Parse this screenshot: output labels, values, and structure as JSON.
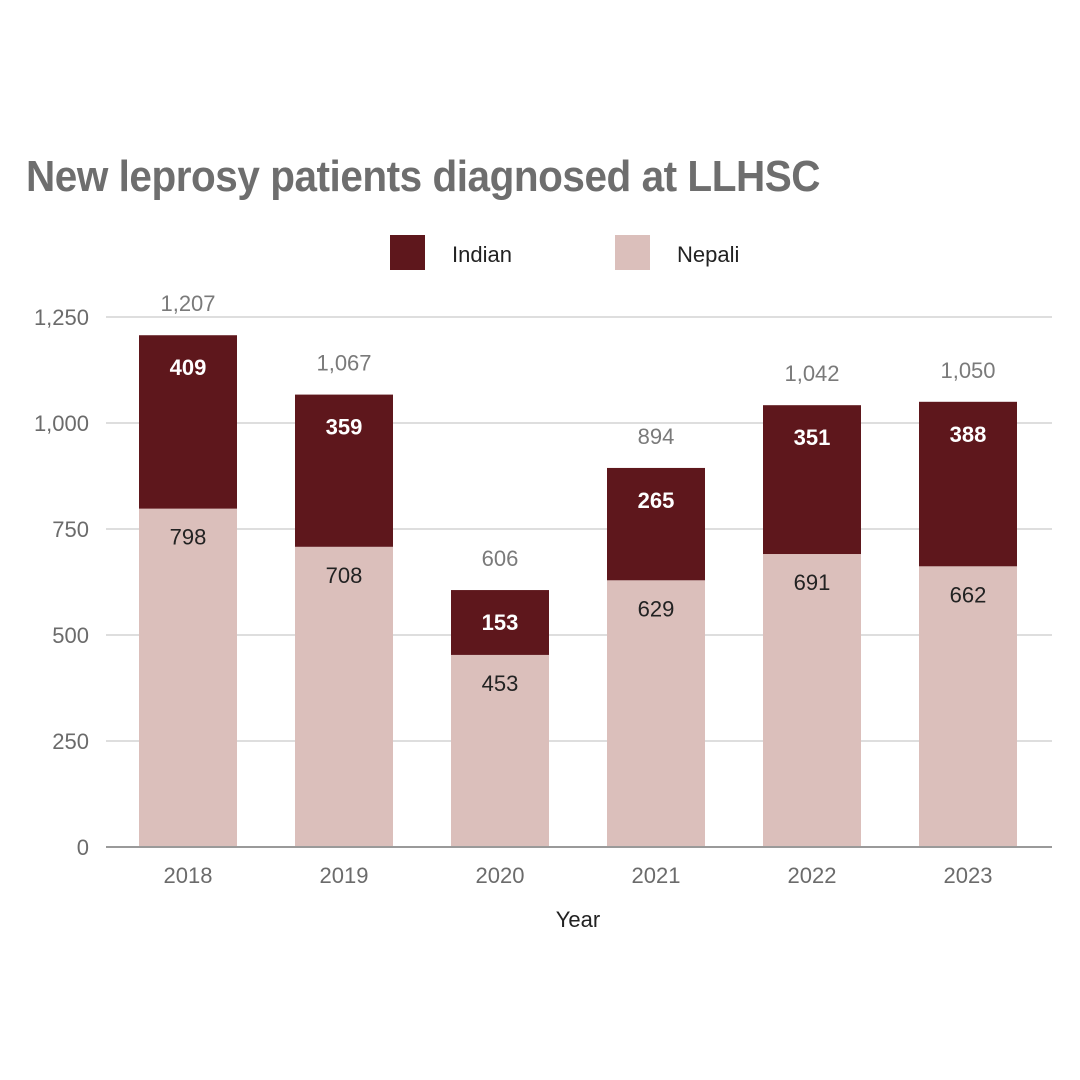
{
  "chart_data": {
    "type": "bar",
    "stacked": true,
    "title": "New leprosy patients diagnosed at LLHSC",
    "xlabel": "Year",
    "ylabel": "",
    "ylim": [
      0,
      1250
    ],
    "yticks": [
      0,
      250,
      500,
      750,
      1000,
      1250
    ],
    "ytick_labels": [
      "0",
      "250",
      "500",
      "750",
      "1,000",
      "1,250"
    ],
    "grid": true,
    "legend_position": "top-center",
    "categories": [
      "2018",
      "2019",
      "2020",
      "2021",
      "2022",
      "2023"
    ],
    "series": [
      {
        "name": "Nepali",
        "color": "#dbbfbb",
        "values": [
          798,
          708,
          453,
          629,
          691,
          662
        ]
      },
      {
        "name": "Indian",
        "color": "#5e171c",
        "values": [
          409,
          359,
          153,
          265,
          351,
          388
        ]
      }
    ],
    "totals": [
      1207,
      1067,
      606,
      894,
      1042,
      1050
    ],
    "total_labels": [
      "1,207",
      "1,067",
      "606",
      "894",
      "1,042",
      "1,050"
    ],
    "legend": [
      {
        "name": "Indian",
        "color": "#5e171c"
      },
      {
        "name": "Nepali",
        "color": "#dbbfbb"
      }
    ]
  }
}
